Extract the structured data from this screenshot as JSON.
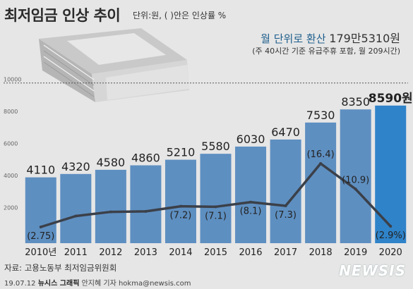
{
  "header": {
    "title": "최저임금 인상 추이",
    "unit_note": "단위:원, ( )안은 인상률 %"
  },
  "callout": {
    "label": "월 단위로 환산",
    "value": "179만5310원",
    "note": "(주 40시간 기준 유급주휴 포함, 월 209시간)"
  },
  "footer": {
    "source": "자료: 고용노동부 최저임금위원회",
    "date": "19.07.12",
    "agency": "뉴시스 그래픽",
    "reporter": "안지혜 기자 hokma@newsis.com",
    "logo": "NEWSIS"
  },
  "chart_data": {
    "type": "bar",
    "categories": [
      "2010년",
      "2011",
      "2012",
      "2013",
      "2014",
      "2015",
      "2016",
      "2017",
      "2018",
      "2019",
      "2020"
    ],
    "value_labels": [
      "4110",
      "4320",
      "4580",
      "4860",
      "5210",
      "5580",
      "6030",
      "6470",
      "7530",
      "8350",
      "8590원"
    ],
    "series": [
      {
        "values": [
          4110,
          4320,
          4580,
          4860,
          5210,
          5580,
          6030,
          6470,
          7530,
          8350,
          8590
        ]
      },
      {
        "values": [
          2.75,
          5.1,
          6.0,
          6.1,
          7.2,
          7.1,
          8.1,
          7.3,
          16.4,
          10.9,
          2.9
        ]
      }
    ],
    "rate_labels": [
      "(2.75)",
      "",
      "",
      "",
      "(7.2)",
      "(7.1)",
      "(8.1)",
      "(7.3)",
      "(16.4)",
      "(10.9)",
      "(2.9%)"
    ],
    "y_ticks": [
      2000,
      4000,
      6000,
      8000,
      10000
    ],
    "ylim": [
      0,
      11000
    ],
    "colors": {
      "bar": "#5e8fc1",
      "bar_highlight": "#2f83c9",
      "line": "#3b4049"
    }
  }
}
